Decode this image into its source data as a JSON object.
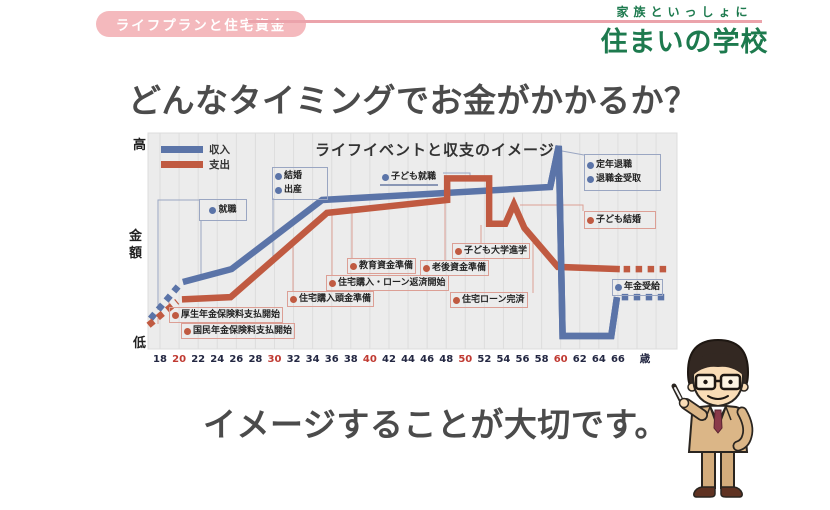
{
  "slide": {
    "topic_pill": "ライフプランと住宅資金",
    "brand_tagline": "家族といっしょに",
    "brand_name": "住まいの学校",
    "headline_top": "どんなタイミングでお金がかかるか？",
    "headline_bottom": "イメージすることが大切です。"
  },
  "colors": {
    "income_blue": "#5b74a8",
    "expense_red": "#c05a41",
    "pill_pink": "#f4b9bd",
    "brand_green": "#1d7a4e",
    "divider_pink": "#eba3ab"
  },
  "chart_data": {
    "type": "line",
    "title": "ライフイベントと収支のイメージ",
    "x_axis": {
      "unit": "歳",
      "ticks": [
        18,
        20,
        22,
        24,
        26,
        28,
        30,
        32,
        34,
        36,
        38,
        40,
        42,
        44,
        46,
        48,
        50,
        52,
        54,
        56,
        58,
        60,
        62,
        64,
        66
      ],
      "red_ticks": [
        20,
        30,
        40,
        50,
        60
      ]
    },
    "y_axis": {
      "high": "高",
      "mid": "金額",
      "low": "低"
    },
    "legend": [
      {
        "label": "収入",
        "color": "#5b74a8"
      },
      {
        "label": "支出",
        "color": "#c05a41"
      }
    ],
    "series": [
      {
        "name": "収入",
        "color": "#5b74a8",
        "dash_pre": [
          [
            17.0,
            14
          ],
          [
            20.1,
            30
          ]
        ],
        "solid": [
          [
            20.4,
            31
          ],
          [
            25.5,
            37
          ],
          [
            35.0,
            69
          ],
          [
            58.9,
            75
          ],
          [
            59.8,
            94
          ],
          [
            60.2,
            6
          ],
          [
            65.3,
            6
          ],
          [
            65.9,
            24
          ]
        ],
        "dash_post": [
          [
            66.4,
            24
          ],
          [
            71.3,
            24
          ]
        ]
      },
      {
        "name": "支出",
        "color": "#c05a41",
        "dash_pre": [
          [
            16.8,
            11
          ],
          [
            19.8,
            22
          ]
        ],
        "solid": [
          [
            20.3,
            23
          ],
          [
            25.4,
            24
          ],
          [
            35.5,
            63
          ],
          [
            48.1,
            69
          ],
          [
            48.1,
            79
          ],
          [
            52.5,
            79
          ],
          [
            52.5,
            58
          ],
          [
            54.2,
            58
          ],
          [
            55.1,
            67
          ],
          [
            56.2,
            56
          ],
          [
            59.7,
            38
          ],
          [
            66.2,
            37
          ]
        ],
        "dash_post": [
          [
            66.6,
            37
          ],
          [
            71.5,
            37
          ]
        ]
      }
    ],
    "events": [
      {
        "label": "就職",
        "type": "income"
      },
      {
        "label": "結婚",
        "type": "income"
      },
      {
        "label": "出産",
        "type": "income"
      },
      {
        "label": "子ども就職",
        "type": "income"
      },
      {
        "label": "定年退職",
        "type": "income"
      },
      {
        "label": "退職金受取",
        "type": "income"
      },
      {
        "label": "子ども結婚",
        "type": "expense"
      },
      {
        "label": "教育資金準備",
        "type": "expense"
      },
      {
        "label": "老後資金準備",
        "type": "expense"
      },
      {
        "label": "住宅購入・ローン返済開始",
        "type": "expense"
      },
      {
        "label": "住宅購入頭金準備",
        "type": "expense"
      },
      {
        "label": "住宅ローン完済",
        "type": "expense"
      },
      {
        "label": "子ども大学進学",
        "type": "expense"
      },
      {
        "label": "厚生年金保険料支払開始",
        "type": "expense"
      },
      {
        "label": "国民年金保険料支払開始",
        "type": "expense"
      },
      {
        "label": "年金受給",
        "type": "income"
      }
    ]
  }
}
